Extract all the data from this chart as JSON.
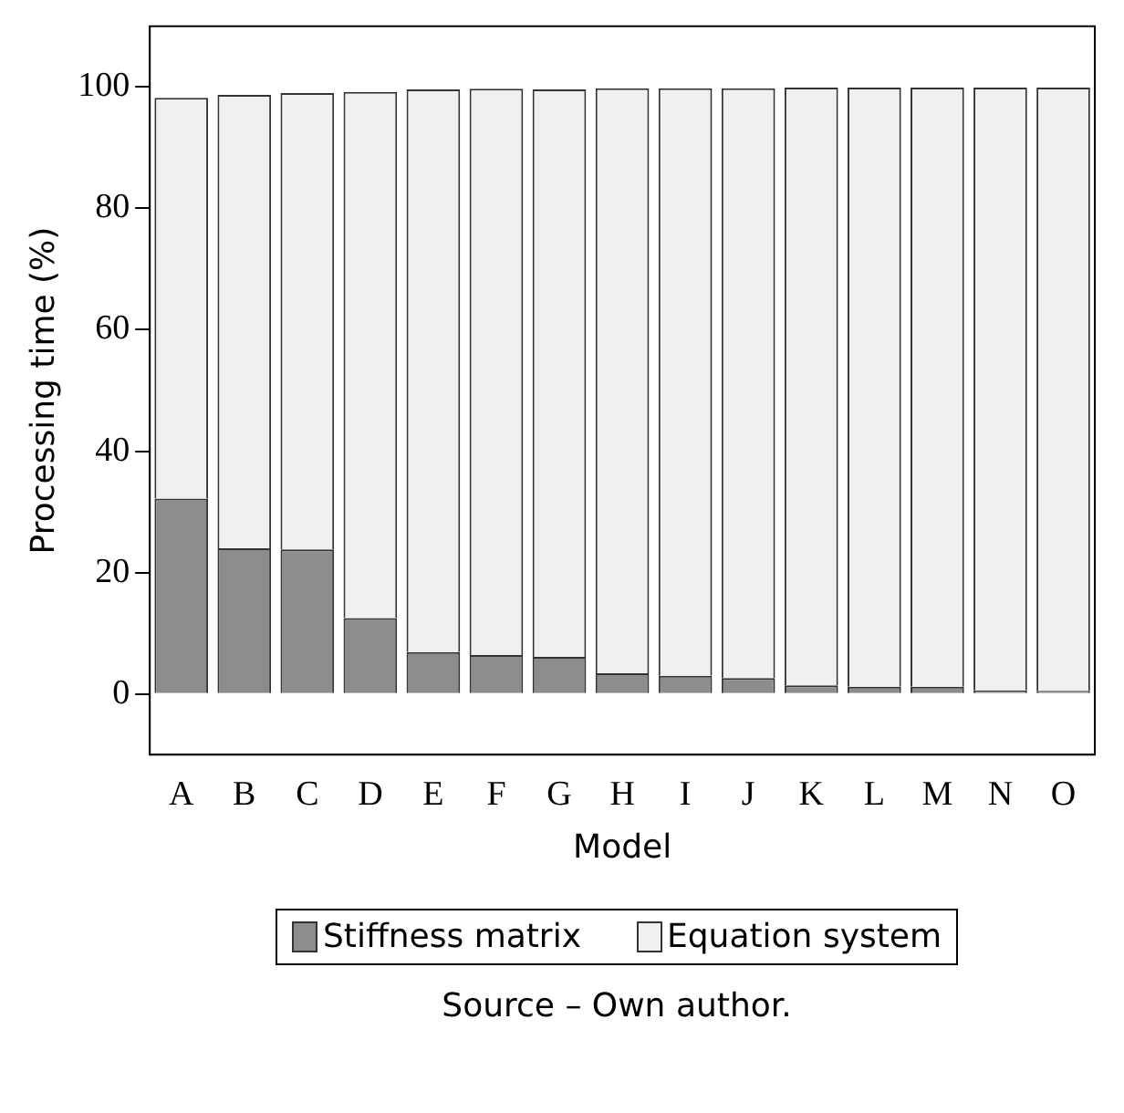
{
  "chart_data": {
    "type": "bar",
    "stacked": true,
    "xlabel": "Model",
    "ylabel": "Processing time (%)",
    "categories": [
      "A",
      "B",
      "C",
      "D",
      "E",
      "F",
      "G",
      "H",
      "I",
      "J",
      "K",
      "L",
      "M",
      "N",
      "O"
    ],
    "series": [
      {
        "name": "Stiffness matrix",
        "color": "#8c8c8c",
        "values": [
          32.2,
          24.0,
          23.8,
          12.5,
          6.9,
          6.4,
          6.1,
          3.4,
          3.0,
          2.6,
          1.4,
          1.2,
          1.2,
          0.6,
          0.5
        ]
      },
      {
        "name": "Equation system",
        "color": "#f0f0f0",
        "values": [
          66.0,
          74.7,
          75.2,
          86.7,
          92.7,
          93.3,
          93.5,
          96.4,
          96.8,
          97.2,
          98.5,
          98.7,
          98.7,
          99.3,
          99.4
        ]
      }
    ],
    "ylim": [
      -10,
      110
    ],
    "yticks": [
      0,
      20,
      40,
      60,
      80,
      100
    ],
    "grid": false,
    "legend": "bottom",
    "annotations": [
      "Source – Own author."
    ]
  }
}
